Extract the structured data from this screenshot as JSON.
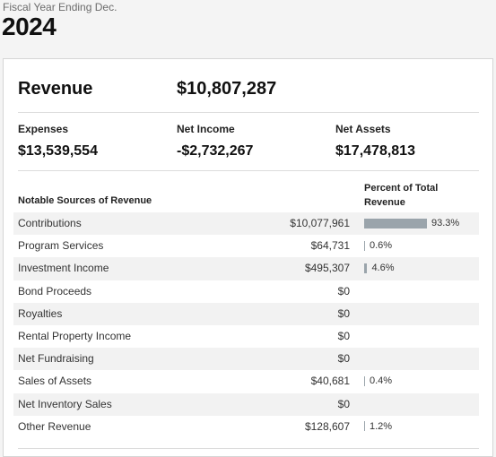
{
  "header": {
    "fiscal_label": "Fiscal Year Ending Dec.",
    "year": "2024"
  },
  "summary": {
    "revenue_label": "Revenue",
    "revenue_value": "$10,807,287",
    "expenses_label": "Expenses",
    "expenses_value": "$13,539,554",
    "net_income_label": "Net Income",
    "net_income_value": "-$2,732,267",
    "net_assets_label": "Net Assets",
    "net_assets_value": "$17,478,813"
  },
  "table": {
    "source_header": "Notable Sources of Revenue",
    "percent_header": "Percent of Total Revenue",
    "bar_color": "#9aa4ab",
    "rows": [
      {
        "name": "Contributions",
        "amount": "$10,077,961",
        "percent": "93.3%",
        "pct_value": 93.3
      },
      {
        "name": "Program Services",
        "amount": "$64,731",
        "percent": "0.6%",
        "pct_value": 0.6
      },
      {
        "name": "Investment Income",
        "amount": "$495,307",
        "percent": "4.6%",
        "pct_value": 4.6
      },
      {
        "name": "Bond Proceeds",
        "amount": "$0",
        "percent": "",
        "pct_value": 0
      },
      {
        "name": "Royalties",
        "amount": "$0",
        "percent": "",
        "pct_value": 0
      },
      {
        "name": "Rental Property Income",
        "amount": "$0",
        "percent": "",
        "pct_value": 0
      },
      {
        "name": "Net Fundraising",
        "amount": "$0",
        "percent": "",
        "pct_value": 0
      },
      {
        "name": "Sales of Assets",
        "amount": "$40,681",
        "percent": "0.4%",
        "pct_value": 0.4
      },
      {
        "name": "Net Inventory Sales",
        "amount": "$0",
        "percent": "",
        "pct_value": 0
      },
      {
        "name": "Other Revenue",
        "amount": "$128,607",
        "percent": "1.2%",
        "pct_value": 1.2
      }
    ]
  }
}
